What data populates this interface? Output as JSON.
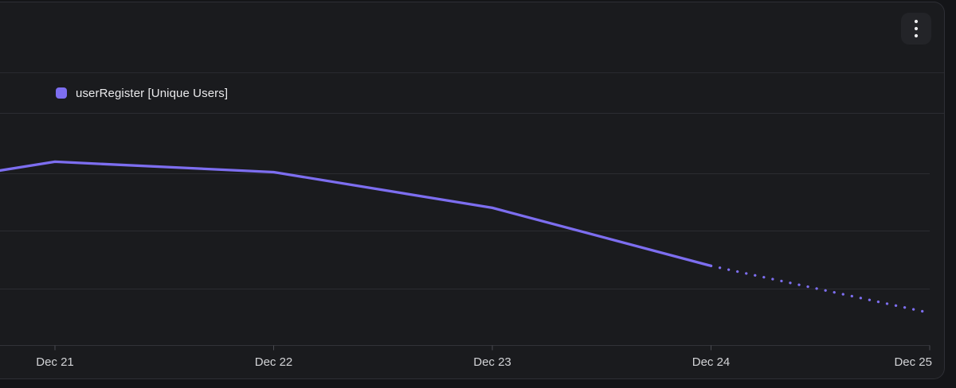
{
  "header": {
    "menu_icon": "kebab-menu"
  },
  "legend": {
    "items": [
      {
        "label": "userRegister [Unique Users]",
        "color": "#7d6ef0"
      }
    ]
  },
  "chart_data": {
    "type": "line",
    "title": "",
    "xlabel": "",
    "ylabel": "",
    "x_tick_labels": [
      "Dec 21",
      "Dec 22",
      "Dec 23",
      "Dec 24",
      "Dec 25"
    ],
    "x_tick_positions": [
      0,
      1,
      2,
      3,
      4
    ],
    "xlim": [
      -0.252,
      4.0
    ],
    "ylim": [
      0,
      100
    ],
    "y_axis_unlabeled": true,
    "grid": "horizontal",
    "legend_position": "top-left",
    "series": [
      {
        "name": "userRegister [Unique Users]",
        "style": "solid",
        "color": "#7d6ef0",
        "x": [
          -0.252,
          0,
          1,
          2,
          3
        ],
        "values": [
          75.6,
          79.4,
          74.9,
          59.5,
          34.4
        ]
      },
      {
        "name": "userRegister [Unique Users] (projected)",
        "style": "dotted",
        "color": "#7d6ef0",
        "x": [
          3,
          4
        ],
        "values": [
          34.4,
          14.1
        ]
      }
    ]
  },
  "colors": {
    "page_bg": "#141518",
    "card_bg": "#1a1b1e",
    "card_border": "#2e2f35",
    "gridline": "#2b2c31",
    "axis_line": "#323338",
    "tick": "#4a4b51",
    "axis_label": "#d2d3d6",
    "legend_text": "#eaeaec",
    "accent": "#7d6ef0",
    "menu_button_bg": "#232428",
    "menu_dots": "#ececee"
  }
}
